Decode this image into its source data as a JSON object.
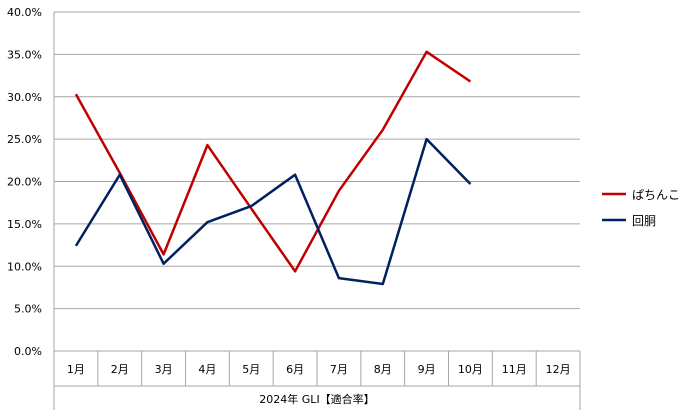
{
  "chart_data": {
    "type": "line",
    "categories": [
      "1月",
      "2月",
      "3月",
      "4月",
      "5月",
      "6月",
      "7月",
      "8月",
      "9月",
      "10月",
      "11月",
      "12月"
    ],
    "series": [
      {
        "name": "ぱちんこ",
        "color": "#C00000",
        "values": [
          30.3,
          21.0,
          11.4,
          24.3,
          16.8,
          9.4,
          18.9,
          26.1,
          35.3,
          31.8,
          null,
          null
        ]
      },
      {
        "name": "回胴",
        "color": "#002060",
        "values": [
          12.4,
          20.8,
          10.3,
          15.2,
          17.1,
          20.8,
          8.6,
          7.9,
          25.0,
          19.7,
          null,
          null
        ]
      }
    ],
    "ylim": [
      0,
      40
    ],
    "yticks": [
      "0.0%",
      "5.0%",
      "10.0%",
      "15.0%",
      "20.0%",
      "25.0%",
      "30.0%",
      "35.0%",
      "40.0%"
    ],
    "xlabel": "2024年 GLI【適合率】",
    "grid": true,
    "legend_position": "right"
  }
}
